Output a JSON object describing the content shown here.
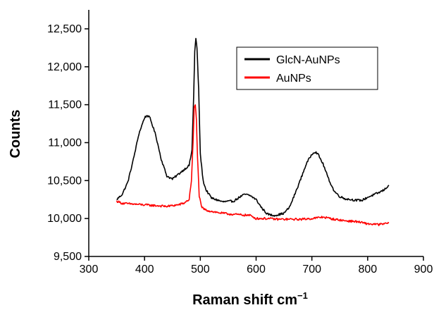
{
  "chart_data": {
    "type": "line",
    "title": "",
    "xlabel": "Raman shift cm",
    "xlabel_superscript": "−1",
    "ylabel": "Counts",
    "xlim": [
      300,
      900
    ],
    "ylim": [
      9500,
      12750
    ],
    "xticks": [
      300,
      400,
      500,
      600,
      700,
      800,
      900
    ],
    "xtick_labels": [
      "300",
      "400",
      "500",
      "600",
      "700",
      "800",
      "900"
    ],
    "yticks": [
      9500,
      10000,
      10500,
      11000,
      11500,
      12000,
      12500
    ],
    "ytick_labels": [
      "9,500",
      "10,000",
      "10,500",
      "11,000",
      "11,500",
      "12,000",
      "12,500"
    ],
    "grid": false,
    "legend_position": "top-right",
    "series": [
      {
        "name": "GlcN-AuNPs",
        "color": "#000000",
        "x": [
          350,
          360,
          370,
          380,
          390,
          400,
          405,
          410,
          420,
          430,
          440,
          450,
          460,
          470,
          480,
          485,
          488,
          490,
          492,
          494,
          497,
          500,
          505,
          510,
          520,
          540,
          560,
          570,
          580,
          590,
          600,
          610,
          620,
          630,
          640,
          650,
          660,
          670,
          680,
          690,
          700,
          705,
          710,
          720,
          730,
          740,
          750,
          760,
          770,
          780,
          790,
          800,
          810,
          820,
          830,
          838
        ],
        "y": [
          10250,
          10320,
          10480,
          10780,
          11120,
          11330,
          11360,
          11320,
          11100,
          10780,
          10560,
          10520,
          10580,
          10640,
          10700,
          10900,
          11600,
          12200,
          12370,
          12250,
          11700,
          10850,
          10500,
          10380,
          10270,
          10220,
          10230,
          10280,
          10320,
          10300,
          10250,
          10140,
          10060,
          10040,
          10050,
          10070,
          10150,
          10330,
          10520,
          10720,
          10850,
          10880,
          10860,
          10720,
          10520,
          10360,
          10290,
          10260,
          10250,
          10240,
          10240,
          10280,
          10310,
          10340,
          10380,
          10440
        ]
      },
      {
        "name": "AuNPs",
        "color": "#ff0000",
        "x": [
          350,
          360,
          380,
          400,
          420,
          440,
          460,
          470,
          480,
          484,
          487,
          489,
          491,
          493,
          495,
          498,
          502,
          510,
          530,
          550,
          570,
          590,
          600,
          620,
          640,
          660,
          680,
          700,
          720,
          740,
          760,
          780,
          800,
          820,
          838
        ],
        "y": [
          10230,
          10200,
          10190,
          10180,
          10170,
          10160,
          10180,
          10200,
          10250,
          10500,
          11000,
          11450,
          11500,
          11300,
          10800,
          10300,
          10150,
          10110,
          10080,
          10060,
          10050,
          10040,
          10000,
          10000,
          9990,
          9990,
          9990,
          10000,
          10020,
          9990,
          9970,
          9960,
          9930,
          9920,
          9940
        ]
      }
    ]
  }
}
